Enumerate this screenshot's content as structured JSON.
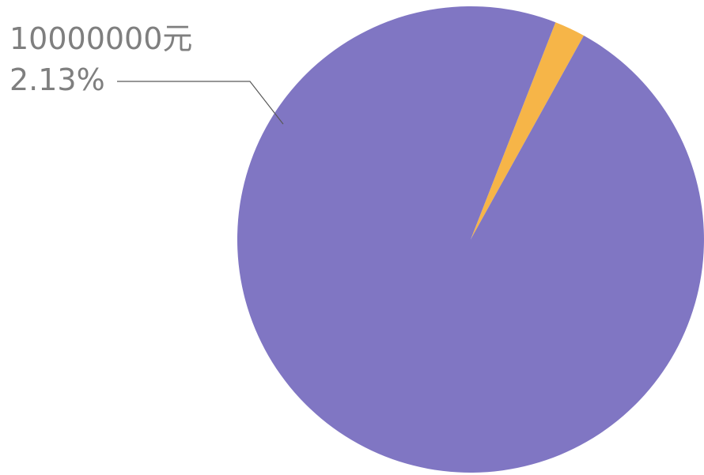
{
  "chart_data": {
    "type": "pie",
    "title": "",
    "start_angle_deg": -61,
    "direction": "counterclockwise",
    "slices": [
      {
        "value_label": "10000000元",
        "percent_label": "2.13%",
        "percent": 2.13,
        "color": "#f6b548",
        "labeled": true
      },
      {
        "value_label": "",
        "percent_label": "",
        "percent": 97.87,
        "color": "#8076c3",
        "labeled": false
      }
    ],
    "legend": "none"
  }
}
